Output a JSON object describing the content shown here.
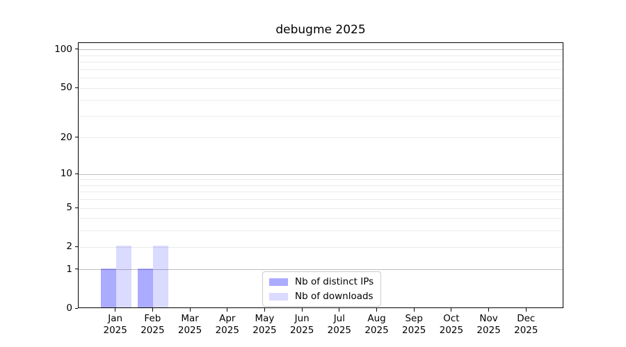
{
  "chart_data": {
    "type": "bar",
    "title": "debugme 2025",
    "categories": [
      {
        "month": "Jan",
        "year": "2025"
      },
      {
        "month": "Feb",
        "year": "2025"
      },
      {
        "month": "Mar",
        "year": "2025"
      },
      {
        "month": "Apr",
        "year": "2025"
      },
      {
        "month": "May",
        "year": "2025"
      },
      {
        "month": "Jun",
        "year": "2025"
      },
      {
        "month": "Jul",
        "year": "2025"
      },
      {
        "month": "Aug",
        "year": "2025"
      },
      {
        "month": "Sep",
        "year": "2025"
      },
      {
        "month": "Oct",
        "year": "2025"
      },
      {
        "month": "Nov",
        "year": "2025"
      },
      {
        "month": "Dec",
        "year": "2025"
      }
    ],
    "series": [
      {
        "name": "Nb of distinct IPs",
        "color": "rgba(0,0,255,0.33)",
        "values": [
          1,
          1,
          0,
          0,
          0,
          0,
          0,
          0,
          0,
          0,
          0,
          0
        ]
      },
      {
        "name": "Nb of downloads",
        "color": "rgba(0,0,255,0.14)",
        "values": [
          2,
          2,
          0,
          0,
          0,
          0,
          0,
          0,
          0,
          0,
          0,
          0
        ]
      }
    ],
    "yticks": [
      0,
      1,
      2,
      5,
      10,
      20,
      50,
      100
    ],
    "gridlines_dark": [
      1,
      10,
      100
    ],
    "gridlines_light": [
      2,
      3,
      4,
      5,
      6,
      7,
      8,
      9,
      20,
      30,
      40,
      50,
      60,
      70,
      80,
      90
    ],
    "yscale": "log1p",
    "ylim": [
      0,
      113
    ],
    "grid": {
      "dark_color": "#bdbdbd",
      "light_color": "#ebebeb"
    },
    "legend_position": "lower center",
    "xlabel": "",
    "ylabel": ""
  }
}
